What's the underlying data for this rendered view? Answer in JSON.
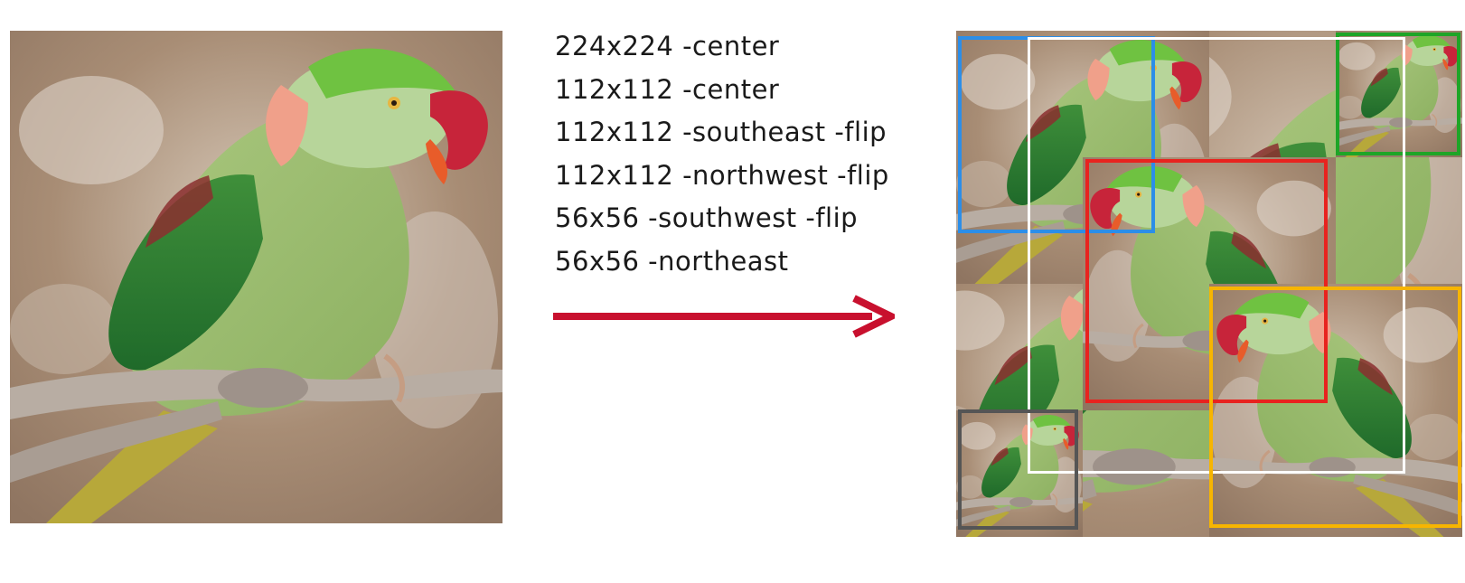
{
  "crops": [
    {
      "label": "224x224 -center"
    },
    {
      "label": "112x112 -center"
    },
    {
      "label": "112x112 -southeast -flip"
    },
    {
      "label": "112x112 -northwest -flip"
    },
    {
      "label": "56x56 -southwest -flip"
    },
    {
      "label": "56x56 -northeast"
    }
  ],
  "colors": {
    "arrow": "#c8102e",
    "box_224_center": "#ffffff",
    "box_112_center": "#e8231f",
    "box_112_southeast": "#f7b500",
    "box_112_northwest": "#2c8ee8",
    "box_56_southwest": "#555555",
    "box_56_northeast": "#1ea527"
  },
  "icons": {
    "source": "parrot-photo",
    "arrow": "right-arrow-icon",
    "collage": "crop-collage"
  }
}
